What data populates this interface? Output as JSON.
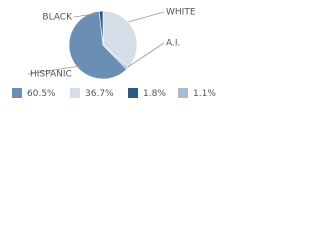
{
  "chart_data": {
    "type": "pie",
    "categories": [
      "HISPANIC",
      "WHITE",
      "BLACK",
      "A.I."
    ],
    "values": [
      60.5,
      36.7,
      1.8,
      1.1
    ],
    "value_labels": [
      "60.5%",
      "36.7%",
      "1.8%",
      "1.1%"
    ],
    "colors": [
      "#6b8fb4",
      "#d5dee8",
      "#2e5a80",
      "#a8bcd0"
    ]
  }
}
